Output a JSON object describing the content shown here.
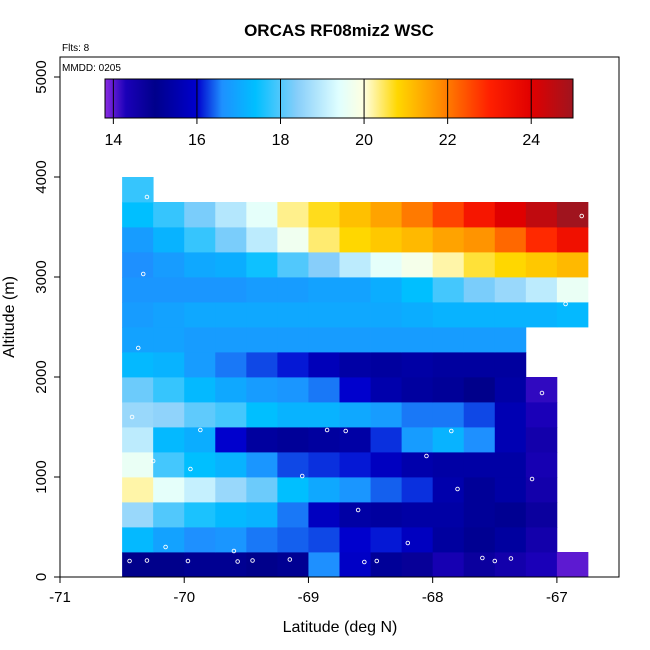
{
  "chart_data": {
    "type": "heatmap",
    "title": "ORCAS RF08miz2 WSC",
    "xlabel": "Latitude (deg N)",
    "ylabel": "Altitude (m)",
    "xlim": [
      -71.0,
      -66.5
    ],
    "ylim": [
      0,
      5200
    ],
    "xticks": [
      -71,
      -70,
      -69,
      -68,
      -67
    ],
    "xtick_labels": [
      "-71",
      "-70",
      "-69",
      "-68",
      "-67"
    ],
    "yticks": [
      0,
      1000,
      2000,
      3000,
      4000,
      5000
    ],
    "ytick_labels": [
      "0",
      "1000",
      "2000",
      "3000",
      "4000",
      "5000"
    ],
    "annotations": [
      "Flts: 8",
      "MMDD: 0205"
    ],
    "colorbar": {
      "min": 13.8,
      "max": 25.0,
      "ticks": [
        14,
        16,
        18,
        20,
        22,
        24
      ],
      "tick_labels": [
        "14",
        "16",
        "18",
        "20",
        "22",
        "24"
      ],
      "stops": [
        [
          13.8,
          "#8a2be2"
        ],
        [
          14.3,
          "#1a00b8"
        ],
        [
          15.0,
          "#00008b"
        ],
        [
          16.0,
          "#0000cd"
        ],
        [
          16.6,
          "#1e90ff"
        ],
        [
          17.4,
          "#00bfff"
        ],
        [
          18.4,
          "#87cefa"
        ],
        [
          19.4,
          "#e0ffff"
        ],
        [
          20.0,
          "#ffffe0"
        ],
        [
          20.8,
          "#ffd700"
        ],
        [
          21.8,
          "#ff8c00"
        ],
        [
          23.0,
          "#ff2000"
        ],
        [
          24.0,
          "#e00000"
        ],
        [
          25.0,
          "#a0141e"
        ]
      ]
    },
    "x_bin_edges": [
      -70.5,
      -70.25,
      -70.0,
      -69.75,
      -69.5,
      -69.25,
      -69.0,
      -68.75,
      -68.5,
      -68.25,
      -68.0,
      -67.75,
      -67.5,
      -67.25,
      -67.0,
      -66.75
    ],
    "y_bin_step": 250,
    "rows": [
      {
        "y_bottom": 0,
        "values": [
          15.0,
          15.0,
          15.1,
          15.1,
          15.0,
          15.1,
          16.6,
          15.9,
          15.2,
          14.8,
          14.4,
          14.7,
          14.5,
          14.3,
          14.0
        ]
      },
      {
        "y_bottom": 250,
        "values": [
          17.3,
          16.9,
          16.6,
          16.7,
          16.5,
          16.4,
          16.3,
          16.0,
          16.1,
          15.8,
          15.3,
          15.1,
          15.3,
          14.5,
          null
        ]
      },
      {
        "y_bottom": 500,
        "values": [
          18.6,
          18.0,
          17.6,
          17.3,
          17.2,
          16.5,
          15.8,
          15.4,
          15.3,
          15.4,
          15.4,
          15.2,
          15.1,
          14.7,
          null
        ]
      },
      {
        "y_bottom": 750,
        "values": [
          20.2,
          19.5,
          19.1,
          18.6,
          18.2,
          17.4,
          17.0,
          16.7,
          16.4,
          16.2,
          15.5,
          15.2,
          15.4,
          14.5,
          null
        ]
      },
      {
        "y_bottom": 1000,
        "values": [
          19.6,
          17.9,
          17.4,
          17.2,
          16.7,
          16.3,
          16.2,
          16.1,
          15.8,
          15.5,
          15.4,
          15.4,
          15.4,
          14.4,
          null
        ]
      },
      {
        "y_bottom": 1250,
        "values": [
          19.0,
          17.3,
          17.1,
          16.0,
          15.3,
          15.2,
          15.3,
          15.4,
          16.2,
          16.8,
          17.2,
          16.6,
          15.6,
          14.5,
          null
        ]
      },
      {
        "y_bottom": 1500,
        "values": [
          18.6,
          18.5,
          18.1,
          17.9,
          17.4,
          17.2,
          17.2,
          17.0,
          16.8,
          16.5,
          16.5,
          16.3,
          15.6,
          14.3,
          null
        ]
      },
      {
        "y_bottom": 1750,
        "values": [
          18.2,
          17.8,
          17.3,
          17.0,
          16.8,
          16.7,
          16.5,
          16.0,
          15.5,
          15.3,
          15.2,
          15.0,
          15.4,
          14.2,
          null
        ]
      },
      {
        "y_bottom": 2000,
        "values": [
          17.3,
          17.2,
          16.8,
          16.5,
          16.3,
          16.1,
          15.7,
          15.4,
          15.3,
          15.4,
          15.3,
          15.3,
          15.3,
          null,
          null
        ]
      },
      {
        "y_bottom": 2250,
        "values": [
          16.9,
          16.9,
          16.8,
          16.8,
          16.8,
          16.8,
          16.8,
          16.8,
          16.8,
          16.8,
          16.8,
          16.8,
          16.8,
          null,
          null
        ]
      },
      {
        "y_bottom": 2500,
        "values": [
          16.8,
          16.9,
          17.0,
          17.0,
          17.0,
          17.0,
          17.0,
          17.0,
          17.0,
          17.1,
          17.2,
          17.2,
          17.2,
          17.2,
          17.3
        ]
      },
      {
        "y_bottom": 2750,
        "values": [
          16.7,
          16.7,
          16.7,
          16.7,
          16.8,
          16.8,
          16.9,
          16.9,
          17.1,
          17.4,
          17.9,
          18.3,
          18.6,
          19.0,
          19.6
        ]
      },
      {
        "y_bottom": 3000,
        "values": [
          16.6,
          16.8,
          17.0,
          17.1,
          17.5,
          18.0,
          18.4,
          19.0,
          19.5,
          19.8,
          20.2,
          20.6,
          20.8,
          21.0,
          21.2
        ]
      },
      {
        "y_bottom": 3250,
        "values": [
          16.8,
          17.2,
          17.8,
          18.3,
          19.0,
          19.7,
          20.4,
          20.8,
          21.0,
          21.2,
          21.5,
          21.7,
          22.2,
          22.9,
          23.5
        ]
      },
      {
        "y_bottom": 3500,
        "values": [
          17.4,
          17.8,
          18.3,
          18.9,
          19.5,
          20.3,
          20.7,
          21.1,
          21.5,
          22.0,
          22.6,
          23.3,
          24.0,
          24.5,
          25.0
        ]
      },
      {
        "y_bottom": 3750,
        "values": [
          17.8,
          null,
          null,
          null,
          null,
          null,
          null,
          null,
          null,
          null,
          null,
          null,
          null,
          null,
          null
        ]
      }
    ],
    "flight_points": [
      [
        -70.44,
        160
      ],
      [
        -70.3,
        165
      ],
      [
        -69.97,
        160
      ],
      [
        -69.57,
        155
      ],
      [
        -69.45,
        165
      ],
      [
        -69.15,
        175
      ],
      [
        -68.55,
        150
      ],
      [
        -68.45,
        160
      ],
      [
        -68.2,
        340
      ],
      [
        -67.6,
        190
      ],
      [
        -67.5,
        160
      ],
      [
        -67.37,
        185
      ],
      [
        -70.52,
        440
      ],
      [
        -70.15,
        300
      ],
      [
        -69.6,
        260
      ],
      [
        -68.6,
        670
      ],
      [
        -67.8,
        880
      ],
      [
        -67.2,
        980
      ],
      [
        -69.95,
        1080
      ],
      [
        -69.87,
        1470
      ],
      [
        -69.05,
        1010
      ],
      [
        -68.85,
        1470
      ],
      [
        -68.7,
        1460
      ],
      [
        -68.05,
        1210
      ],
      [
        -67.85,
        1460
      ],
      [
        -70.25,
        1160
      ],
      [
        -70.42,
        1600
      ],
      [
        -67.12,
        1840
      ],
      [
        -70.37,
        2290
      ],
      [
        -70.33,
        3030
      ],
      [
        -66.93,
        2730
      ],
      [
        -70.3,
        3800
      ],
      [
        -66.8,
        3610
      ]
    ]
  }
}
